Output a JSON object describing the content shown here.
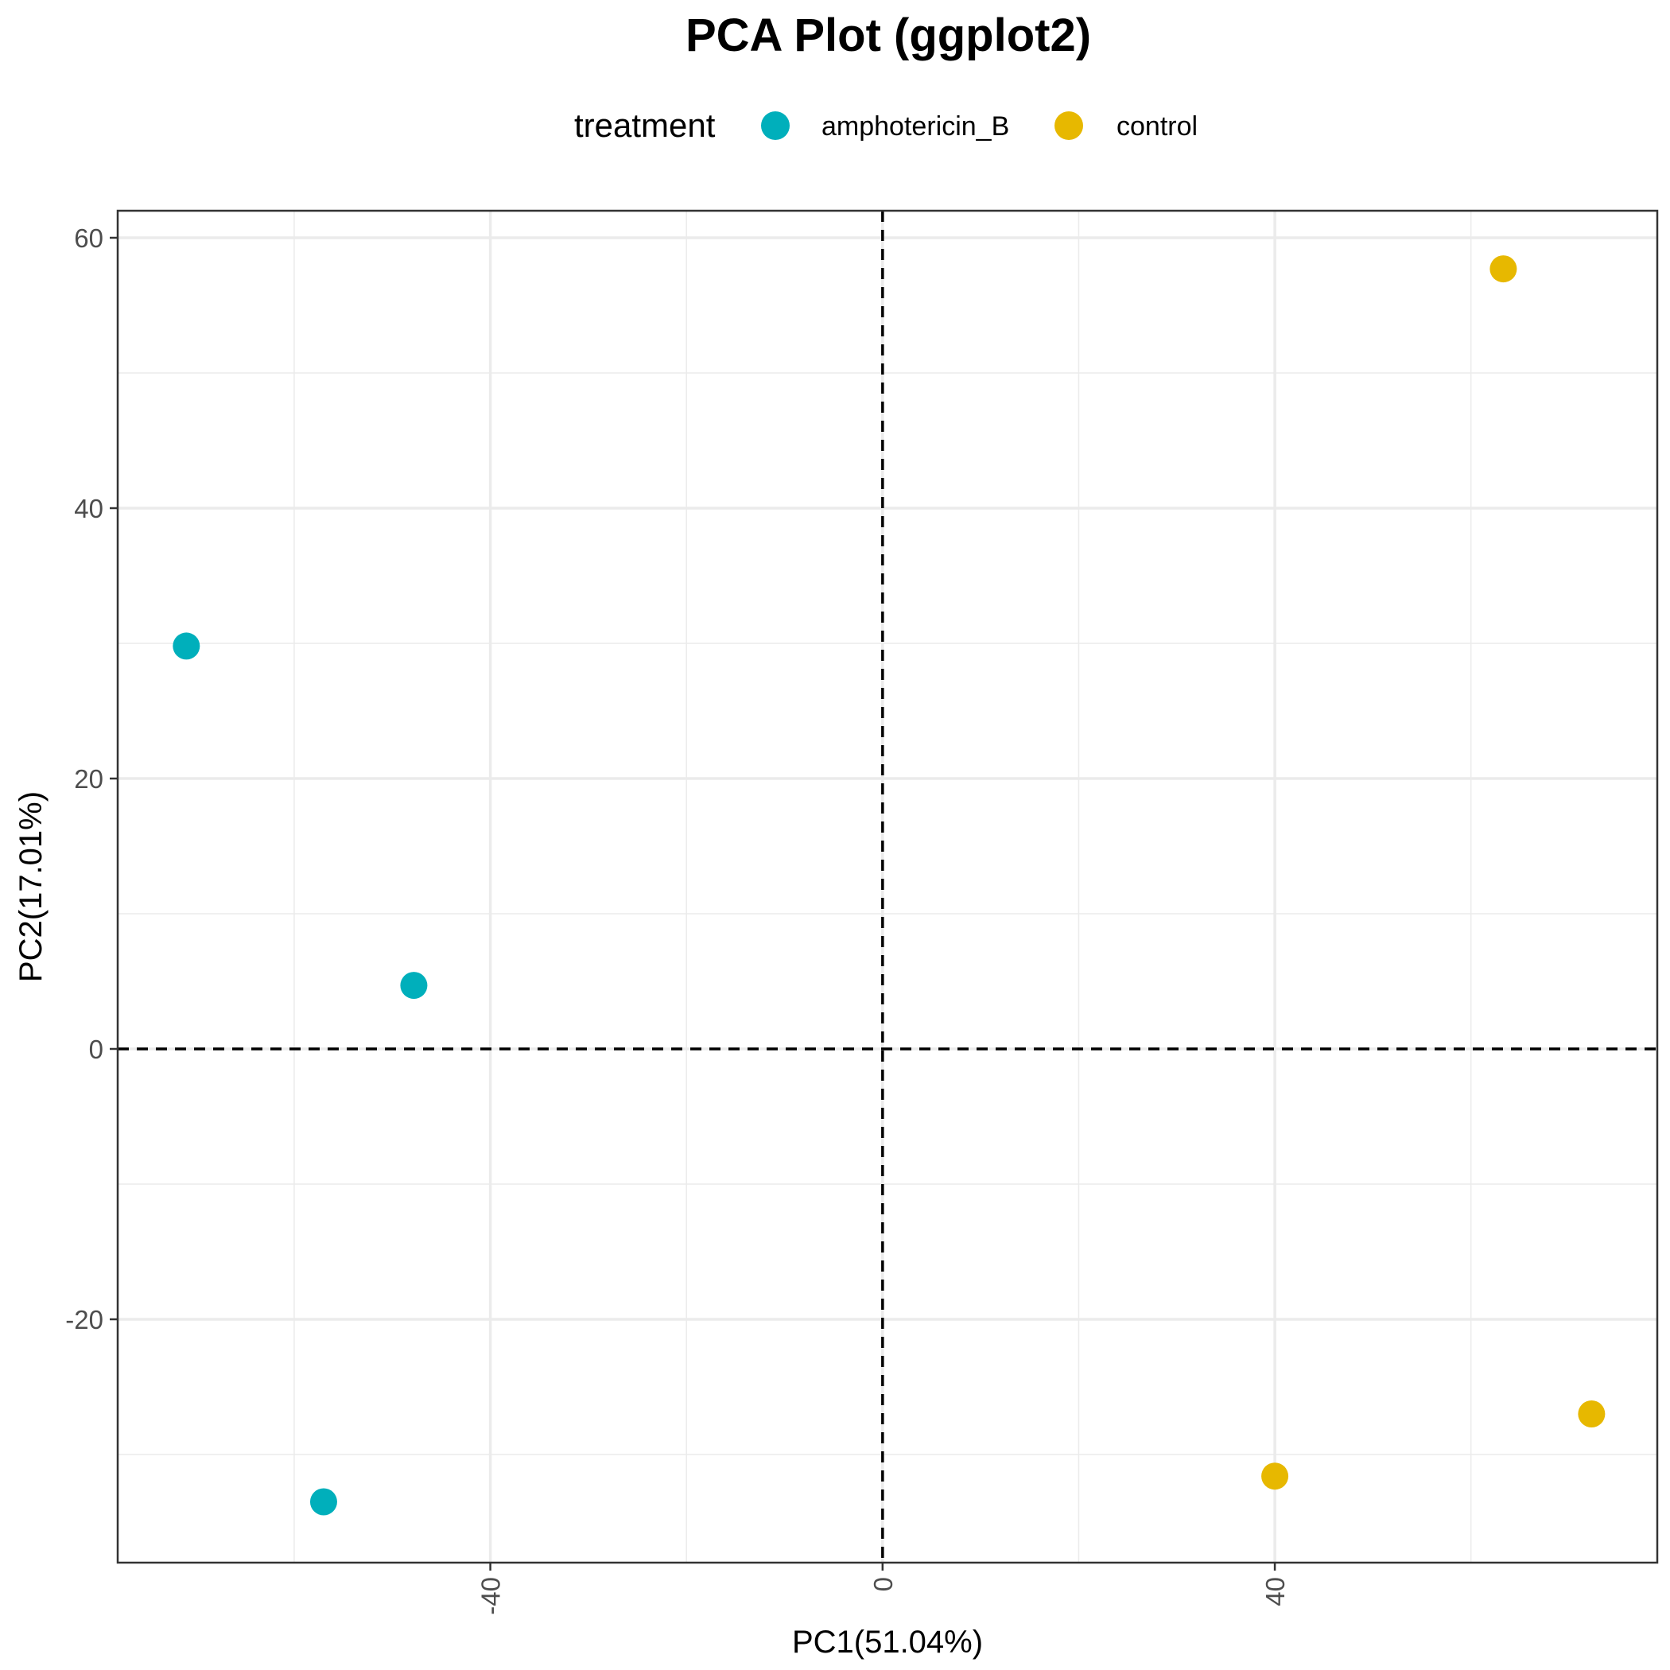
{
  "chart_data": {
    "type": "scatter",
    "title": "PCA Plot (ggplot2)",
    "xlabel": "PC1(51.04%)",
    "ylabel": "PC2(17.01%)",
    "xlim": [
      -78,
      79
    ],
    "ylim": [
      -38,
      62
    ],
    "x_ticks": [
      -40,
      0,
      40
    ],
    "x_tick_labels": [
      "-40",
      "0",
      "40"
    ],
    "y_ticks": [
      -20,
      0,
      20,
      40,
      60
    ],
    "y_tick_labels": [
      "-20",
      "0",
      "20",
      "40",
      "60"
    ],
    "grid": true,
    "reference_lines": {
      "x": 0,
      "y": 0,
      "style": "dashed"
    },
    "legend": {
      "title": "treatment",
      "position": "top"
    },
    "series": [
      {
        "name": "amphotericin_B",
        "color": "#00AFBB",
        "points": [
          {
            "x": -71,
            "y": 29.8
          },
          {
            "x": -47.8,
            "y": 4.7
          },
          {
            "x": -57,
            "y": -33.5
          }
        ]
      },
      {
        "name": "control",
        "color": "#E7B800",
        "points": [
          {
            "x": 63.3,
            "y": 57.7
          },
          {
            "x": 40,
            "y": -31.6
          },
          {
            "x": 72.3,
            "y": -27
          }
        ]
      }
    ]
  }
}
